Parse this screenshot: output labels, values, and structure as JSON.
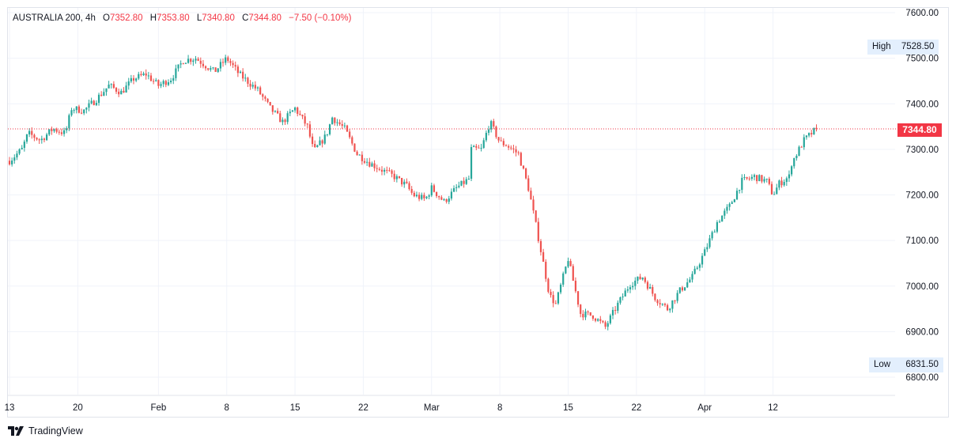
{
  "legend": {
    "symbol": "AUSTRALIA 200",
    "interval": "4h",
    "open_label": "O",
    "open": "7352.80",
    "high_label": "H",
    "high": "7353.80",
    "low_label": "L",
    "low": "7340.80",
    "close_label": "C",
    "close": "7344.80",
    "change": "−7.50 (−0.10%)"
  },
  "markers": {
    "high_label": "High",
    "high_value": "7528.50",
    "low_label": "Low",
    "low_value": "6831.50",
    "last_price": "7344.80"
  },
  "footer": {
    "brand": "TradingView"
  },
  "colors": {
    "up": "#26a69a",
    "down": "#ef5350",
    "last_line": "#f23645",
    "grid": "#f0f3fa"
  },
  "chart_data": {
    "type": "candlestick",
    "ylim": [
      6780,
      7620
    ],
    "y_ticks": [
      "7600.00",
      "7500.00",
      "7400.00",
      "7300.00",
      "7200.00",
      "7100.00",
      "7000.00",
      "6900.00",
      "6800.00"
    ],
    "x_ticks": [
      "13",
      "20",
      "Feb",
      "8",
      "15",
      "22",
      "Mar",
      "8",
      "15",
      "22",
      "Apr",
      "12"
    ],
    "x_tick_index": [
      0,
      5.5,
      12,
      17.5,
      23,
      28.5,
      34,
      39.5,
      45,
      50.5,
      56,
      61.5
    ],
    "anchors": [
      [
        0,
        7275
      ],
      [
        1,
        7300
      ],
      [
        1.5,
        7335
      ],
      [
        2.5,
        7320
      ],
      [
        3.5,
        7345
      ],
      [
        4.5,
        7335
      ],
      [
        5,
        7390
      ],
      [
        6,
        7385
      ],
      [
        7,
        7410
      ],
      [
        8,
        7440
      ],
      [
        9,
        7425
      ],
      [
        10,
        7455
      ],
      [
        11,
        7465
      ],
      [
        12,
        7440
      ],
      [
        13,
        7455
      ],
      [
        14,
        7495
      ],
      [
        15,
        7500
      ],
      [
        16.5,
        7470
      ],
      [
        17.5,
        7500
      ],
      [
        18.5,
        7465
      ],
      [
        20,
        7430
      ],
      [
        21,
        7390
      ],
      [
        22,
        7360
      ],
      [
        23,
        7390
      ],
      [
        24,
        7350
      ],
      [
        24.5,
        7295
      ],
      [
        25.5,
        7330
      ],
      [
        26,
        7370
      ],
      [
        27,
        7345
      ],
      [
        28,
        7290
      ],
      [
        29,
        7270
      ],
      [
        30,
        7255
      ],
      [
        31,
        7240
      ],
      [
        32,
        7220
      ],
      [
        32.5,
        7200
      ],
      [
        33.5,
        7190
      ],
      [
        34,
        7215
      ],
      [
        35,
        7185
      ],
      [
        36,
        7215
      ],
      [
        37,
        7235
      ],
      [
        37.2,
        7300
      ],
      [
        38,
        7300
      ],
      [
        38.7,
        7360
      ],
      [
        39.5,
        7315
      ],
      [
        40,
        7310
      ],
      [
        41,
        7290
      ],
      [
        41.8,
        7215
      ],
      [
        42.5,
        7120
      ],
      [
        43.5,
        6980
      ],
      [
        44,
        6960
      ],
      [
        44.5,
        7010
      ],
      [
        45,
        7060
      ],
      [
        46,
        6940
      ],
      [
        47,
        6935
      ],
      [
        48,
        6910
      ],
      [
        49,
        6960
      ],
      [
        50,
        7005
      ],
      [
        51,
        7020
      ],
      [
        52,
        6975
      ],
      [
        53,
        6950
      ],
      [
        54,
        6990
      ],
      [
        55,
        7020
      ],
      [
        56,
        7075
      ],
      [
        57,
        7140
      ],
      [
        58,
        7175
      ],
      [
        59,
        7230
      ],
      [
        60,
        7240
      ],
      [
        61,
        7230
      ],
      [
        61.5,
        7200
      ],
      [
        62,
        7225
      ],
      [
        62.8,
        7240
      ],
      [
        63,
        7270
      ],
      [
        64,
        7320
      ],
      [
        65,
        7345
      ]
    ]
  }
}
